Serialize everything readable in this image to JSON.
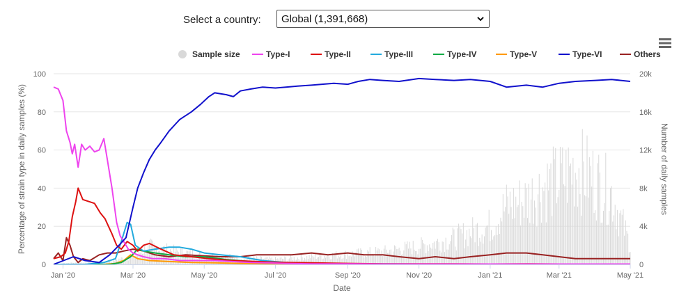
{
  "selector": {
    "label": "Select a country:",
    "value": "Global (1,391,668)"
  },
  "menu": {
    "icon": "hamburger-menu-icon"
  },
  "colors": {
    "sample_size": "#d9d9d9",
    "Type-I": "#ee44ee",
    "Type-II": "#dd1111",
    "Type-III": "#22aadd",
    "Type-IV": "#11aa44",
    "Type-V": "#ff9900",
    "Type-VI": "#1111cc",
    "Others": "#992222"
  },
  "chart_data": {
    "type": "line",
    "title": "",
    "xlabel": "Date",
    "ylabel": "Percentage of strain type in daily samples (%)",
    "y2label": "Number of daily samples",
    "ylim": [
      0,
      100
    ],
    "y2lim": [
      0,
      20000
    ],
    "yticks": [
      "0",
      "20",
      "40",
      "60",
      "80",
      "100"
    ],
    "y2ticks": [
      "0",
      "4k",
      "8k",
      "12k",
      "16k",
      "20k"
    ],
    "xticks": [
      "Jan '20",
      "Mar '20",
      "May '20",
      "Jul '20",
      "Sep '20",
      "Nov '20",
      "Jan '21",
      "Mar '21",
      "May '21"
    ],
    "xtick_dates": [
      "2020-01-01",
      "2020-03-01",
      "2020-05-01",
      "2020-07-01",
      "2020-09-01",
      "2020-11-01",
      "2021-01-01",
      "2021-03-01",
      "2021-05-01"
    ],
    "xlim": [
      "2019-12-24",
      "2021-05-01"
    ],
    "legend_position": "top-right",
    "legend": [
      "Sample size",
      "Type-I",
      "Type-II",
      "Type-III",
      "Type-IV",
      "Type-V",
      "Type-VI",
      "Others"
    ],
    "series": [
      {
        "name": "Type-I",
        "x": [
          "2019-12-24",
          "2019-12-28",
          "2020-01-01",
          "2020-01-04",
          "2020-01-07",
          "2020-01-09",
          "2020-01-11",
          "2020-01-14",
          "2020-01-17",
          "2020-01-20",
          "2020-01-24",
          "2020-01-28",
          "2020-02-01",
          "2020-02-05",
          "2020-02-08",
          "2020-02-12",
          "2020-02-16",
          "2020-02-19",
          "2020-02-22",
          "2020-02-26",
          "2020-03-01",
          "2020-03-05",
          "2020-03-10",
          "2020-03-18",
          "2020-03-28",
          "2020-04-10",
          "2020-04-25",
          "2020-05-10",
          "2020-05-25",
          "2020-06-10",
          "2020-06-25",
          "2020-07-10",
          "2020-08-01",
          "2020-09-01",
          "2020-10-01",
          "2020-11-01",
          "2020-12-01",
          "2021-01-01",
          "2021-02-01",
          "2021-03-01",
          "2021-04-01",
          "2021-05-01"
        ],
        "values": [
          93,
          92,
          86,
          70,
          64,
          58,
          63,
          51,
          63,
          60,
          62,
          59,
          60,
          66,
          55,
          40,
          22,
          15,
          12,
          8,
          6,
          5,
          4,
          3,
          3,
          2,
          2,
          2,
          1.5,
          1,
          0.8,
          0.5,
          0.3,
          0.3,
          0.2,
          0.2,
          0.2,
          0.2,
          0.2,
          0.2,
          0.2,
          0.2
        ]
      },
      {
        "name": "Type-II",
        "x": [
          "2019-12-24",
          "2019-12-30",
          "2020-01-03",
          "2020-01-06",
          "2020-01-09",
          "2020-01-12",
          "2020-01-14",
          "2020-01-18",
          "2020-01-23",
          "2020-01-28",
          "2020-02-02",
          "2020-02-06",
          "2020-02-12",
          "2020-02-16",
          "2020-02-20",
          "2020-02-25",
          "2020-03-01",
          "2020-03-05",
          "2020-03-10",
          "2020-03-15",
          "2020-03-25",
          "2020-04-05",
          "2020-04-20",
          "2020-05-05",
          "2020-05-25",
          "2020-06-15",
          "2020-07-10",
          "2020-08-01",
          "2020-09-01",
          "2020-10-01",
          "2020-11-01",
          "2020-12-01",
          "2021-01-01",
          "2021-02-01",
          "2021-03-01",
          "2021-04-01",
          "2021-05-01"
        ],
        "values": [
          3,
          4,
          6,
          12,
          25,
          33,
          40,
          34,
          33,
          32,
          27,
          24,
          16,
          10,
          8,
          12,
          10,
          7,
          10,
          11,
          8,
          5,
          4,
          3,
          2,
          1.5,
          1,
          0.8,
          0.5,
          0.3,
          0.3,
          0.3,
          0.2,
          0.3,
          0.2,
          0.2,
          0.2
        ]
      },
      {
        "name": "Type-III",
        "x": [
          "2019-12-24",
          "2020-01-20",
          "2020-02-05",
          "2020-02-15",
          "2020-02-20",
          "2020-02-25",
          "2020-02-28",
          "2020-03-03",
          "2020-03-10",
          "2020-03-20",
          "2020-04-01",
          "2020-04-10",
          "2020-04-20",
          "2020-05-01",
          "2020-05-15",
          "2020-06-01",
          "2020-06-20",
          "2020-07-10",
          "2020-08-01",
          "2020-09-01",
          "2020-11-01",
          "2021-01-01",
          "2021-03-01",
          "2021-05-01"
        ],
        "values": [
          0,
          0,
          1,
          3,
          12,
          22,
          21,
          10,
          7,
          8,
          9,
          9,
          8,
          6,
          5,
          4,
          2,
          1,
          0.5,
          0.3,
          0.2,
          0.2,
          0.2,
          0.2
        ]
      },
      {
        "name": "Type-IV",
        "x": [
          "2019-12-24",
          "2020-02-10",
          "2020-02-20",
          "2020-02-28",
          "2020-03-05",
          "2020-03-10",
          "2020-03-20",
          "2020-04-01",
          "2020-04-15",
          "2020-05-01",
          "2020-05-20",
          "2020-06-10",
          "2020-07-01",
          "2020-08-01",
          "2020-09-01",
          "2020-11-01",
          "2021-01-01",
          "2021-03-01",
          "2021-05-01"
        ],
        "values": [
          0,
          0,
          1,
          4,
          8,
          7,
          6,
          5,
          4,
          4,
          2.5,
          1.5,
          1,
          0.5,
          0.3,
          0.2,
          0.2,
          0.2,
          0.2
        ]
      },
      {
        "name": "Type-V",
        "x": [
          "2019-12-24",
          "2020-02-05",
          "2020-02-15",
          "2020-02-22",
          "2020-02-28",
          "2020-03-05",
          "2020-03-15",
          "2020-04-01",
          "2020-04-20",
          "2020-05-10",
          "2020-06-01",
          "2020-07-01",
          "2020-08-01",
          "2020-09-01",
          "2020-11-01",
          "2021-01-01",
          "2021-03-01",
          "2021-05-01"
        ],
        "values": [
          0,
          0,
          0.5,
          2,
          5,
          3,
          2,
          1.5,
          1,
          0.8,
          0.5,
          0.3,
          0.2,
          0.2,
          0.2,
          0.2,
          0.2,
          0.2
        ]
      },
      {
        "name": "Type-VI",
        "x": [
          "2019-12-24",
          "2020-01-10",
          "2020-01-20",
          "2020-02-01",
          "2020-02-10",
          "2020-02-18",
          "2020-02-24",
          "2020-03-01",
          "2020-03-05",
          "2020-03-10",
          "2020-03-15",
          "2020-03-20",
          "2020-03-25",
          "2020-04-01",
          "2020-04-10",
          "2020-04-20",
          "2020-04-28",
          "2020-05-05",
          "2020-05-10",
          "2020-05-20",
          "2020-05-26",
          "2020-06-01",
          "2020-06-10",
          "2020-06-20",
          "2020-07-01",
          "2020-07-10",
          "2020-07-20",
          "2020-08-01",
          "2020-08-10",
          "2020-08-20",
          "2020-09-01",
          "2020-09-10",
          "2020-09-20",
          "2020-10-01",
          "2020-10-15",
          "2020-11-01",
          "2020-11-15",
          "2020-12-01",
          "2020-12-15",
          "2021-01-01",
          "2021-01-15",
          "2021-02-01",
          "2021-02-15",
          "2021-03-01",
          "2021-03-15",
          "2021-04-01",
          "2021-04-15",
          "2021-05-01"
        ],
        "values": [
          0,
          4,
          2,
          1,
          5,
          10,
          14,
          30,
          40,
          48,
          55,
          60,
          64,
          70,
          76,
          80,
          84,
          88,
          90,
          89,
          88,
          91,
          92,
          93,
          92.5,
          93,
          93.5,
          94,
          94.5,
          95,
          94.5,
          96,
          97,
          96.5,
          96,
          97.5,
          97,
          96.5,
          97,
          96,
          93,
          94,
          93,
          95,
          96,
          96.5,
          97,
          96
        ]
      },
      {
        "name": "Others",
        "x": [
          "2019-12-24",
          "2019-12-28",
          "2020-01-01",
          "2020-01-04",
          "2020-01-07",
          "2020-01-10",
          "2020-01-14",
          "2020-01-18",
          "2020-01-24",
          "2020-02-01",
          "2020-02-08",
          "2020-02-15",
          "2020-02-22",
          "2020-03-01",
          "2020-03-10",
          "2020-03-20",
          "2020-04-01",
          "2020-04-15",
          "2020-05-01",
          "2020-05-15",
          "2020-06-01",
          "2020-06-15",
          "2020-07-01",
          "2020-07-15",
          "2020-08-01",
          "2020-08-15",
          "2020-09-01",
          "2020-09-15",
          "2020-10-01",
          "2020-10-15",
          "2020-11-01",
          "2020-11-15",
          "2020-12-01",
          "2020-12-15",
          "2021-01-01",
          "2021-01-15",
          "2021-02-01",
          "2021-02-15",
          "2021-03-01",
          "2021-03-15",
          "2021-04-01",
          "2021-04-15",
          "2021-05-01"
        ],
        "values": [
          3,
          6,
          2,
          14,
          10,
          4,
          1,
          3,
          2,
          5,
          6,
          6,
          7,
          8,
          7,
          5,
          4,
          5,
          4.5,
          4,
          4,
          5,
          5,
          5,
          6,
          5,
          6,
          5,
          5,
          4,
          3,
          4,
          3,
          4,
          5,
          6,
          6,
          5,
          4,
          3,
          3,
          3,
          3
        ]
      }
    ],
    "sample_size": {
      "name": "Sample size",
      "x": [
        "2020-01-01",
        "2020-02-01",
        "2020-03-01",
        "2020-03-15",
        "2020-04-01",
        "2020-04-15",
        "2020-05-01",
        "2020-06-01",
        "2020-07-01",
        "2020-08-01",
        "2020-09-01",
        "2020-10-01",
        "2020-11-01",
        "2020-12-01",
        "2020-12-15",
        "2021-01-01",
        "2021-01-15",
        "2021-02-01",
        "2021-02-15",
        "2021-03-01",
        "2021-03-15",
        "2021-03-25",
        "2021-04-01",
        "2021-04-15",
        "2021-05-01"
      ],
      "values": [
        200,
        300,
        1200,
        2800,
        2200,
        1800,
        1500,
        1000,
        800,
        1200,
        1600,
        2000,
        2800,
        4000,
        5000,
        6000,
        9000,
        10000,
        12000,
        13000,
        15000,
        14000,
        13000,
        11000,
        3000
      ]
    }
  }
}
